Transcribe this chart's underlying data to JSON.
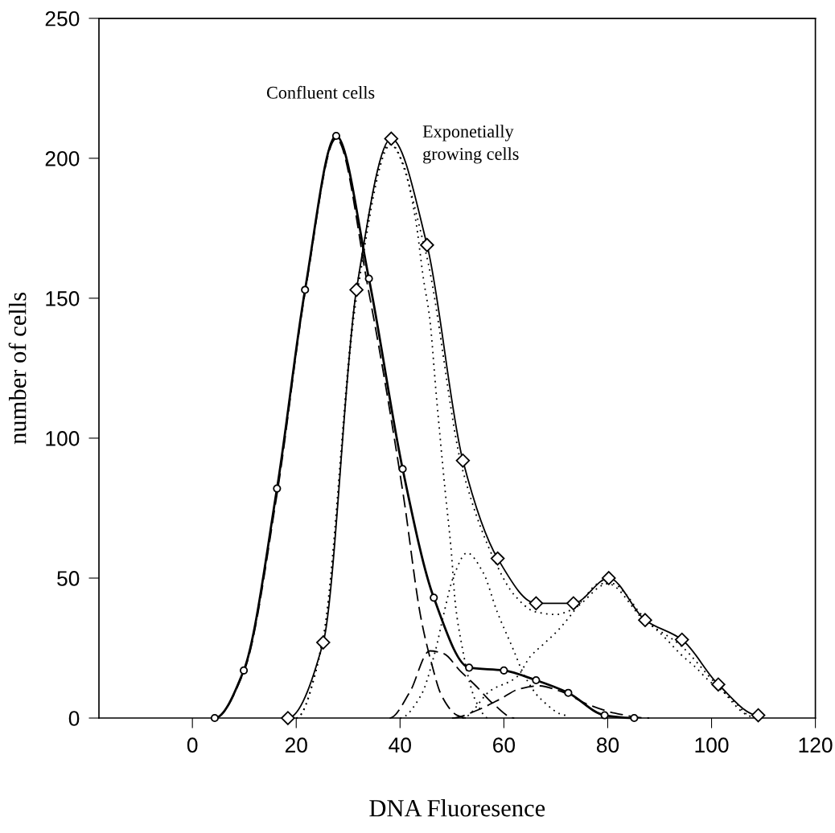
{
  "chart_data": {
    "type": "line",
    "xlabel": "DNA Fluoresence",
    "ylabel": "number of cells",
    "xlim": [
      -18,
      120
    ],
    "ylim": [
      0,
      250
    ],
    "xticks": [
      0,
      20,
      40,
      60,
      80,
      100,
      120
    ],
    "yticks": [
      0,
      50,
      100,
      150,
      200,
      250
    ],
    "grid": false,
    "legend": false,
    "series": [
      {
        "name": "Confluent cells",
        "color": "#000000",
        "marker": "circle",
        "line_style": "solid",
        "x": [
          4.3,
          9.9,
          16.3,
          21.7,
          27.7,
          34.0,
          40.5,
          46.5,
          53.3,
          60.0,
          66.2,
          72.4,
          79.4,
          85.1
        ],
        "values": [
          0,
          17,
          82,
          153,
          208,
          157,
          89,
          43,
          18,
          17,
          13.5,
          9,
          1,
          0
        ]
      },
      {
        "name": "Exponetially\ngrowing cells",
        "color": "#000000",
        "marker": "diamond",
        "line_style": "solid",
        "x": [
          18.4,
          25.2,
          31.6,
          38.3,
          45.2,
          52.1,
          58.8,
          66.2,
          73.4,
          80.2,
          87.2,
          94.3,
          101.3,
          109.0
        ],
        "values": [
          0,
          27,
          153,
          207,
          169,
          92,
          57,
          41,
          41,
          50,
          35,
          28,
          12,
          1
        ]
      },
      {
        "color": "#000000",
        "marker": "none",
        "line_style": "dashed",
        "x": [
          4.3,
          10,
          16.3,
          21.7,
          27.7,
          34,
          40.6,
          44,
          46,
          48,
          51,
          53
        ],
        "values": [
          0,
          17,
          80,
          152,
          207,
          152,
          80,
          36,
          20,
          8,
          1,
          0
        ]
      },
      {
        "color": "#000000",
        "marker": "none",
        "line_style": "dashed",
        "x": [
          38,
          41.8,
          45.7,
          48.4,
          51.5,
          54.6,
          58,
          62
        ],
        "values": [
          0,
          9,
          24,
          23,
          17,
          11.5,
          5,
          0
        ]
      },
      {
        "color": "#000000",
        "marker": "none",
        "line_style": "dashed",
        "x": [
          50,
          54.6,
          59.5,
          62.8,
          66.7,
          71,
          76,
          82,
          88
        ],
        "values": [
          0,
          2.6,
          7,
          10.3,
          11.5,
          9.5,
          5,
          1.5,
          0
        ]
      },
      {
        "color": "#000000",
        "marker": "none",
        "line_style": "dotted",
        "x": [
          20,
          25,
          31.6,
          38,
          45,
          52,
          58.8,
          62,
          66,
          70,
          73.4,
          80,
          87,
          94,
          101,
          108
        ],
        "values": [
          0,
          27,
          153,
          205,
          166,
          89,
          54,
          44,
          38,
          37,
          39,
          48,
          35,
          26,
          12,
          0.5
        ]
      },
      {
        "color": "#000000",
        "marker": "none",
        "line_style": "dotted",
        "x": [
          20,
          25,
          31.6,
          38.3,
          40.6,
          43,
          44.5,
          45.7,
          47,
          48.7,
          49.8,
          50.7,
          51.9,
          53.5,
          54.6,
          57
        ],
        "values": [
          0,
          26,
          150,
          205,
          198,
          178,
          157,
          143,
          115,
          81,
          61,
          40,
          26,
          12,
          6,
          0
        ]
      },
      {
        "color": "#000000",
        "marker": "none",
        "line_style": "dotted",
        "x": [
          40,
          44,
          46.8,
          48.4,
          50.2,
          52.9,
          56,
          58.7,
          61.7,
          64,
          67,
          72
        ],
        "values": [
          0,
          8,
          24,
          37,
          50,
          59,
          52,
          38,
          25,
          15,
          7,
          1
        ]
      },
      {
        "color": "#000000",
        "marker": "none",
        "line_style": "dotted",
        "x": [
          52,
          57.4,
          62.5,
          65.1,
          67.8,
          70.4,
          73,
          75.5,
          78.3,
          81,
          83.6,
          86,
          91.6,
          94.1,
          97,
          99.4,
          102.2,
          104.7,
          107.4
        ],
        "values": [
          0,
          9.8,
          14.7,
          22,
          26.7,
          31.3,
          37,
          43,
          48,
          48,
          44,
          38,
          27.6,
          22.7,
          18,
          13.5,
          9.5,
          5.2,
          1
        ]
      }
    ]
  }
}
